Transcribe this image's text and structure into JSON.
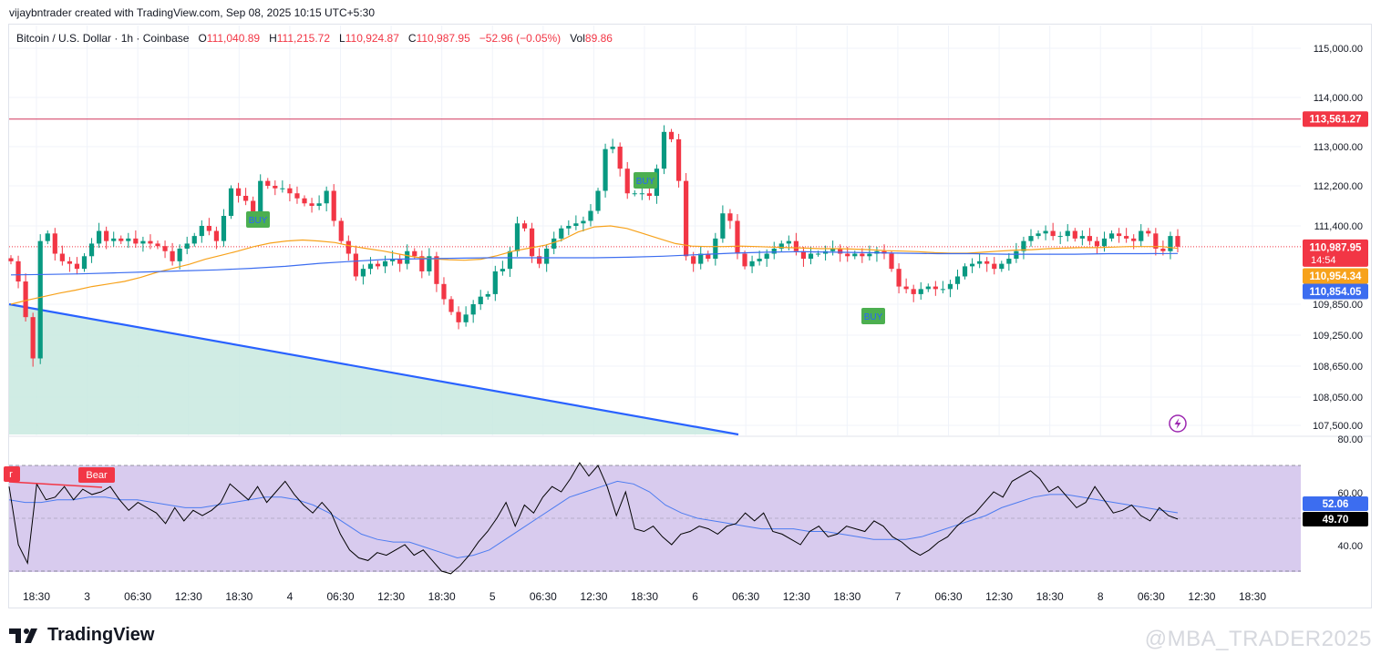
{
  "credit": "vijaybntrader created with TradingView.com, Sep 08, 2025 10:15 UTC+5:30",
  "legend": {
    "symbol": "Bitcoin / U.S. Dollar · 1h · Coinbase",
    "o_label": "O",
    "o": "111,040.89",
    "h_label": "H",
    "h": "111,215.72",
    "l_label": "L",
    "l": "110,924.87",
    "c_label": "C",
    "c": "110,987.95",
    "change": "−52.96 (−0.05%)",
    "vol_label": "Vol",
    "vol": "89.86"
  },
  "brand": "TradingView",
  "watermark": "@MBA_TRADER2025",
  "colors": {
    "up": "#089981",
    "down": "#f23645",
    "ma_fast": "#f7a21b",
    "ma_slow": "#3c6df0",
    "hline": "#d1365c",
    "rsi_bg": "#d8cbee",
    "rsi_line": "#000000",
    "rsi_ma": "#4d7cf0",
    "trend": "#2962ff",
    "zone": "#c8e9df"
  },
  "chart_data": {
    "type": "candlestick",
    "price_axis_ticks": [
      "115,000.00",
      "114,000.00",
      "113,000.00",
      "112,200.00",
      "111,400.00",
      "109,850.00",
      "109,250.00",
      "108,650.00",
      "108,050.00",
      "107,500.00"
    ],
    "price_tick_values": [
      115000,
      114000,
      113000,
      112200,
      111400,
      109850,
      109250,
      108650,
      108050,
      107500
    ],
    "price_badges": [
      {
        "label": "113,561.27",
        "value": 113561.27,
        "color": "#f23645"
      },
      {
        "label": "110,987.95",
        "sub": "14:54",
        "value": 110987.95,
        "color": "#f23645"
      },
      {
        "label": "110,954.34",
        "value": 110954.34,
        "color": "#f7a21b"
      },
      {
        "label": "110,854.05",
        "value": 110854.05,
        "color": "#3c6df0"
      }
    ],
    "horizontal_line": 113561.27,
    "time_labels": [
      "18:30",
      "3",
      "06:30",
      "12:30",
      "18:30",
      "4",
      "06:30",
      "12:30",
      "18:30",
      "5",
      "06:30",
      "12:30",
      "18:30",
      "6",
      "06:30",
      "12:30",
      "18:30",
      "7",
      "06:30",
      "12:30",
      "18:30",
      "8",
      "06:30",
      "12:30",
      "18:30"
    ],
    "candles_close": [
      110700,
      110300,
      109600,
      108800,
      111100,
      111250,
      110850,
      110700,
      110650,
      110550,
      110800,
      111050,
      111300,
      111100,
      111150,
      111100,
      111150,
      111050,
      111100,
      111050,
      111000,
      110900,
      110700,
      110950,
      111050,
      111200,
      111400,
      111300,
      111100,
      111600,
      112150,
      112000,
      111900,
      111650,
      112300,
      112200,
      112150,
      112150,
      112050,
      111950,
      111850,
      111800,
      111850,
      112100,
      111500,
      111100,
      110850,
      110400,
      110550,
      110650,
      110600,
      110700,
      110750,
      110650,
      110900,
      110800,
      110500,
      110800,
      110250,
      109950,
      109700,
      109500,
      109650,
      109850,
      110000,
      110050,
      110500,
      110550,
      110900,
      111450,
      111350,
      110800,
      110650,
      110950,
      111150,
      111350,
      111400,
      111450,
      111500,
      111700,
      112100,
      112950,
      113000,
      112550,
      112050,
      112050,
      112050,
      112000,
      112550,
      113300,
      113150,
      112300,
      110800,
      110650,
      110850,
      110750,
      111150,
      111650,
      111500,
      110850,
      110600,
      110700,
      110750,
      110850,
      110950,
      111050,
      111100,
      110900,
      110750,
      110850,
      110850,
      110900,
      110950,
      110850,
      110800,
      110850,
      110800,
      110850,
      110900,
      110850,
      110550,
      110200,
      110150,
      110050,
      110150,
      110200,
      110150,
      110150,
      110250,
      110400,
      110600,
      110650,
      110700,
      110650,
      110550,
      110650,
      110750,
      110900,
      111100,
      111200,
      111250,
      111300,
      111200,
      111200,
      111300,
      111150,
      111200,
      111100,
      111000,
      111150,
      111250,
      111200,
      111150,
      111100,
      111300,
      111250,
      110950,
      110900,
      111200,
      110987.95
    ],
    "ma_fast": [
      109850,
      109930,
      110000,
      110070,
      110130,
      110200,
      110250,
      110300,
      110380,
      110480,
      110560,
      110640,
      110740,
      110820,
      110900,
      110990,
      111060,
      111100,
      111120,
      111100,
      111070,
      111000,
      110950,
      110900,
      110840,
      110780,
      110750,
      110730,
      110720,
      110740,
      110810,
      110900,
      110960,
      111020,
      111120,
      111280,
      111380,
      111400,
      111350,
      111250,
      111150,
      111050,
      111000,
      110990,
      110990,
      111000,
      110990,
      110980,
      110970,
      110960,
      110950,
      110950,
      110940,
      110930,
      110910,
      110900,
      110890,
      110870,
      110860,
      110860,
      110880,
      110900,
      110920,
      110930,
      110950,
      110960,
      110970,
      110970,
      110980,
      110990,
      110990,
      110990,
      110954.34
    ],
    "ma_slow": [
      110430,
      110440,
      110450,
      110470,
      110490,
      110510,
      110530,
      110560,
      110600,
      110660,
      110700,
      110740,
      110750,
      110760,
      110770,
      110770,
      110770,
      110770,
      110780,
      110800,
      110830,
      110860,
      110880,
      110890,
      110880,
      110870,
      110860,
      110850,
      110850,
      110840,
      110840,
      110840,
      110850,
      110850,
      110854.05
    ],
    "rsi": {
      "axis_ticks": [
        "80.00",
        "60.00",
        "40.00"
      ],
      "levels": [
        70,
        50,
        30
      ],
      "labels": [
        {
          "text": "r"
        },
        {
          "text": "Bear"
        }
      ],
      "value": "49.70",
      "ma_value": "52.06",
      "rsi": [
        62,
        40,
        33,
        63,
        57,
        58,
        62,
        57,
        61,
        59,
        60,
        62,
        57,
        53,
        56,
        54,
        52,
        48,
        54,
        49,
        53,
        51,
        53,
        56,
        63,
        60,
        57,
        62,
        56,
        60,
        64,
        59,
        55,
        52,
        56,
        52,
        44,
        38,
        35,
        34,
        37,
        36,
        38,
        40,
        36,
        38,
        34,
        30,
        29,
        32,
        36,
        41,
        45,
        50,
        56,
        47,
        55,
        52,
        58,
        62,
        60,
        65,
        71,
        66,
        70,
        62,
        51,
        60,
        46,
        45,
        47,
        43,
        40,
        44,
        45,
        47,
        46,
        44,
        47,
        48,
        52,
        49,
        52,
        45,
        44,
        42,
        40,
        45,
        47,
        43,
        44,
        47,
        46,
        45,
        49,
        47,
        43,
        41,
        38,
        36,
        38,
        41,
        43,
        47,
        50,
        52,
        56,
        60,
        58,
        64,
        66,
        68,
        65,
        60,
        62,
        58,
        54,
        56,
        62,
        57,
        52,
        53,
        55,
        51,
        49,
        54,
        51,
        49.7
      ],
      "rsi_ma": [
        57,
        56,
        56,
        57,
        57,
        58,
        58,
        57,
        57,
        56,
        55,
        54,
        54,
        55,
        56,
        57,
        58,
        58,
        57,
        55,
        52,
        48,
        44,
        42,
        41,
        41,
        39,
        37,
        35,
        36,
        38,
        42,
        46,
        50,
        54,
        58,
        60,
        62,
        64,
        63,
        60,
        55,
        52,
        50,
        49,
        48,
        47,
        46,
        46,
        46,
        45,
        45,
        44,
        43,
        42,
        42,
        42,
        43,
        45,
        47,
        49,
        51,
        54,
        56,
        58,
        59,
        59,
        58,
        57,
        56,
        55,
        54,
        53,
        52.06
      ]
    }
  }
}
